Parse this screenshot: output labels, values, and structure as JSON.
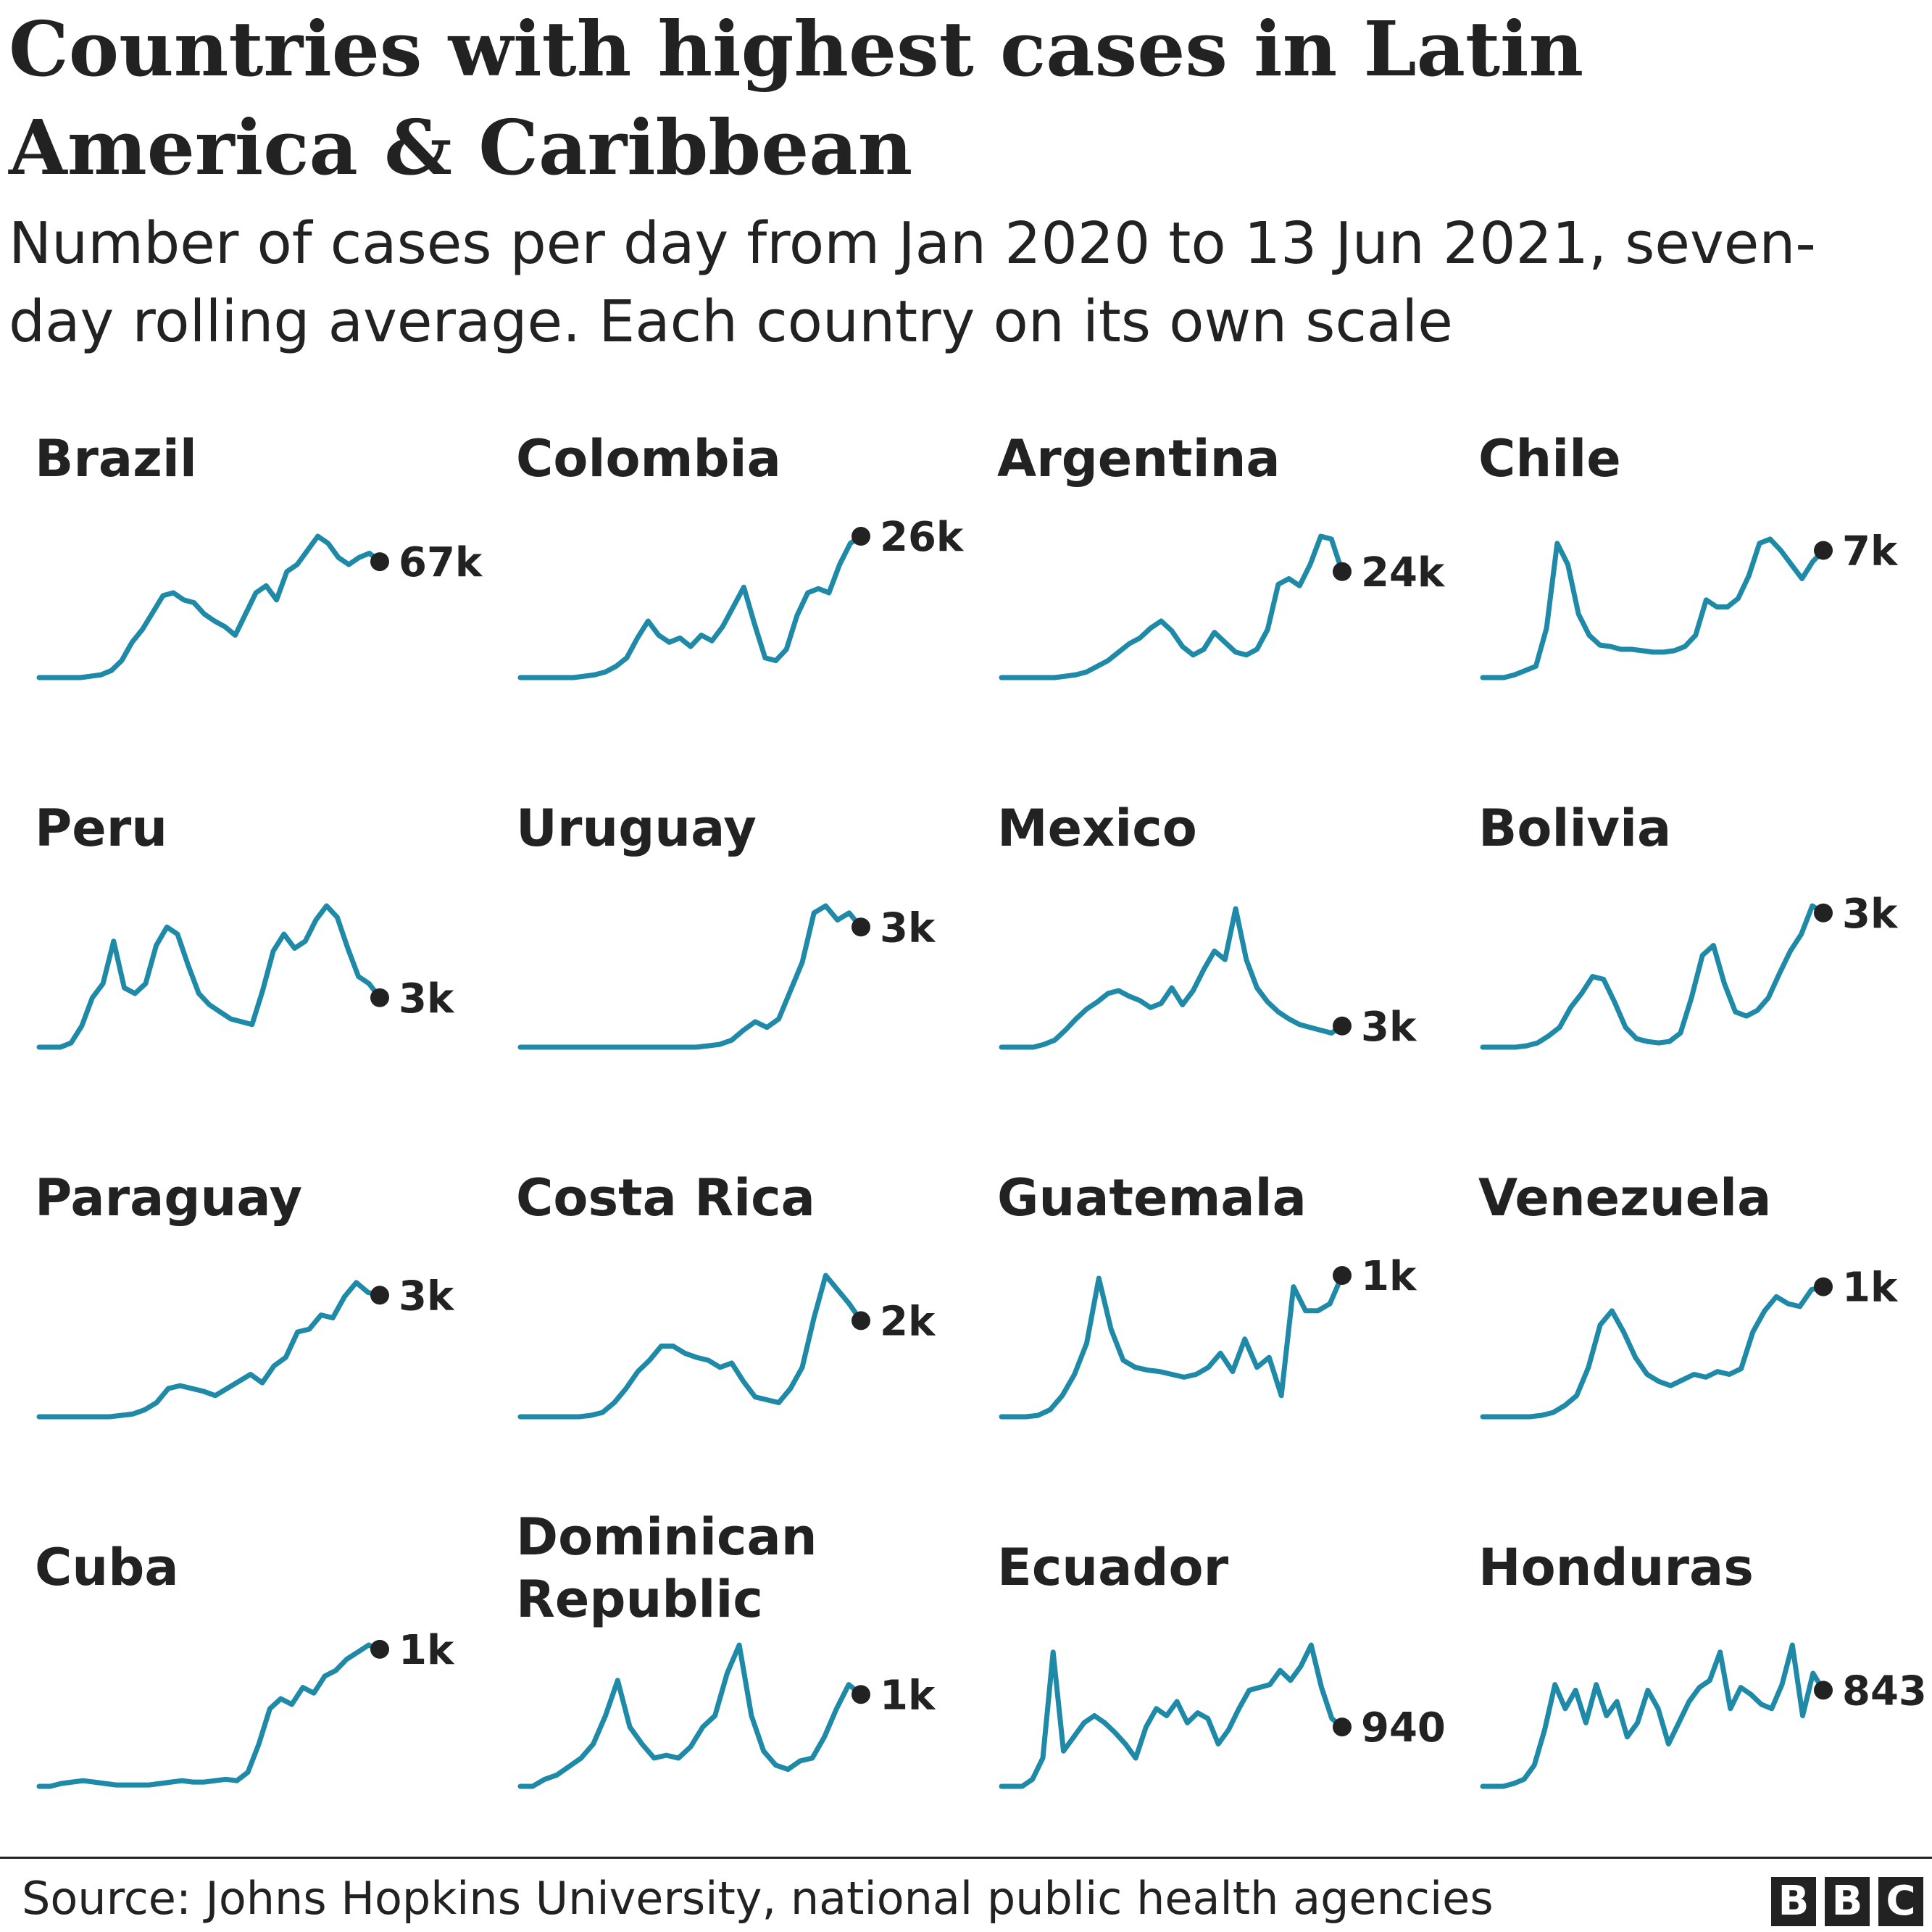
{
  "header": {
    "title": "Countries with highest cases in Latin America & Caribbean",
    "subtitle": "Number of cases per day from Jan 2020 to 13 Jun 2021, seven-day rolling average. Each country on its own scale"
  },
  "footer": {
    "source": "Source: Johns Hopkins University, national public health agencies",
    "logo_letters": [
      "B",
      "B",
      "C"
    ]
  },
  "colors": {
    "line": "#1f8aa8",
    "dot": "#222222",
    "text": "#222222"
  },
  "chart_data": {
    "type": "line",
    "x_start": "Jan 2020",
    "x_end": "13 Jun 2021",
    "panels": [
      {
        "name": "Brazil",
        "end_label": "67k",
        "values": [
          0,
          0,
          0,
          0,
          0,
          0.01,
          0.02,
          0.05,
          0.12,
          0.25,
          0.34,
          0.46,
          0.58,
          0.6,
          0.55,
          0.53,
          0.45,
          0.4,
          0.36,
          0.3,
          0.45,
          0.6,
          0.65,
          0.55,
          0.75,
          0.8,
          0.9,
          1.0,
          0.95,
          0.85,
          0.8,
          0.85,
          0.88,
          0.82
        ]
      },
      {
        "name": "Colombia",
        "end_label": "26k",
        "values": [
          0,
          0,
          0,
          0,
          0,
          0,
          0.01,
          0.02,
          0.04,
          0.08,
          0.14,
          0.28,
          0.4,
          0.3,
          0.25,
          0.28,
          0.22,
          0.3,
          0.26,
          0.36,
          0.5,
          0.64,
          0.38,
          0.14,
          0.12,
          0.2,
          0.44,
          0.6,
          0.63,
          0.6,
          0.8,
          0.95,
          1.0
        ]
      },
      {
        "name": "Argentina",
        "end_label": "24k",
        "values": [
          0,
          0,
          0,
          0,
          0,
          0,
          0.01,
          0.02,
          0.04,
          0.08,
          0.12,
          0.18,
          0.24,
          0.28,
          0.35,
          0.4,
          0.33,
          0.22,
          0.16,
          0.2,
          0.32,
          0.25,
          0.18,
          0.16,
          0.2,
          0.34,
          0.66,
          0.7,
          0.65,
          0.8,
          1.0,
          0.98,
          0.75
        ]
      },
      {
        "name": "Chile",
        "end_label": "7k",
        "values": [
          0,
          0,
          0,
          0.02,
          0.05,
          0.08,
          0.35,
          0.95,
          0.8,
          0.45,
          0.3,
          0.23,
          0.22,
          0.2,
          0.2,
          0.19,
          0.18,
          0.18,
          0.19,
          0.22,
          0.3,
          0.55,
          0.5,
          0.5,
          0.56,
          0.72,
          0.95,
          0.98,
          0.9,
          0.8,
          0.7,
          0.82,
          0.9
        ]
      },
      {
        "name": "Peru",
        "end_label": "3k",
        "values": [
          0,
          0,
          0,
          0.03,
          0.15,
          0.35,
          0.45,
          0.75,
          0.42,
          0.38,
          0.45,
          0.72,
          0.85,
          0.8,
          0.58,
          0.38,
          0.3,
          0.25,
          0.2,
          0.18,
          0.16,
          0.4,
          0.68,
          0.8,
          0.7,
          0.75,
          0.9,
          1.0,
          0.92,
          0.7,
          0.5,
          0.45,
          0.35
        ]
      },
      {
        "name": "Uruguay",
        "end_label": "3k",
        "values": [
          0,
          0,
          0,
          0,
          0,
          0,
          0,
          0,
          0,
          0,
          0,
          0,
          0,
          0,
          0,
          0,
          0.01,
          0.02,
          0.05,
          0.12,
          0.18,
          0.14,
          0.2,
          0.4,
          0.6,
          0.95,
          1.0,
          0.9,
          0.95,
          0.85
        ]
      },
      {
        "name": "Mexico",
        "end_label": "3k",
        "values": [
          0,
          0,
          0,
          0,
          0.02,
          0.05,
          0.12,
          0.2,
          0.27,
          0.32,
          0.38,
          0.4,
          0.36,
          0.33,
          0.28,
          0.31,
          0.42,
          0.3,
          0.4,
          0.55,
          0.68,
          0.62,
          0.98,
          0.62,
          0.42,
          0.32,
          0.25,
          0.2,
          0.16,
          0.14,
          0.12,
          0.1,
          0.15
        ]
      },
      {
        "name": "Bolivia",
        "end_label": "3k",
        "values": [
          0,
          0,
          0,
          0,
          0.01,
          0.03,
          0.08,
          0.14,
          0.28,
          0.38,
          0.5,
          0.48,
          0.32,
          0.14,
          0.06,
          0.04,
          0.03,
          0.04,
          0.1,
          0.35,
          0.65,
          0.72,
          0.45,
          0.25,
          0.22,
          0.26,
          0.35,
          0.52,
          0.68,
          0.8,
          1.0,
          0.95
        ]
      },
      {
        "name": "Paraguay",
        "end_label": "3k",
        "values": [
          0,
          0,
          0,
          0,
          0,
          0,
          0,
          0.01,
          0.02,
          0.05,
          0.1,
          0.2,
          0.22,
          0.2,
          0.18,
          0.15,
          0.2,
          0.25,
          0.3,
          0.24,
          0.36,
          0.42,
          0.6,
          0.62,
          0.72,
          0.7,
          0.85,
          0.95,
          0.88,
          0.86
        ]
      },
      {
        "name": "Costa Rica",
        "end_label": "2k",
        "values": [
          0,
          0,
          0,
          0,
          0,
          0,
          0.01,
          0.03,
          0.1,
          0.2,
          0.32,
          0.4,
          0.5,
          0.5,
          0.45,
          0.42,
          0.4,
          0.35,
          0.38,
          0.25,
          0.14,
          0.12,
          0.1,
          0.2,
          0.35,
          0.7,
          1.0,
          0.9,
          0.8,
          0.68
        ]
      },
      {
        "name": "Guatemala",
        "end_label": "1k",
        "values": [
          0,
          0,
          0,
          0.01,
          0.05,
          0.15,
          0.3,
          0.52,
          0.98,
          0.62,
          0.4,
          0.35,
          0.33,
          0.32,
          0.3,
          0.28,
          0.3,
          0.35,
          0.45,
          0.32,
          0.55,
          0.35,
          0.42,
          0.15,
          0.92,
          0.75,
          0.75,
          0.8,
          1.0
        ]
      },
      {
        "name": "Venezuela",
        "end_label": "1k",
        "values": [
          0,
          0,
          0,
          0,
          0,
          0.01,
          0.03,
          0.08,
          0.15,
          0.35,
          0.65,
          0.75,
          0.6,
          0.42,
          0.3,
          0.25,
          0.22,
          0.26,
          0.3,
          0.28,
          0.32,
          0.3,
          0.34,
          0.6,
          0.75,
          0.85,
          0.8,
          0.78,
          0.9,
          0.92
        ]
      },
      {
        "name": "Cuba",
        "end_label": "1k",
        "values": [
          0,
          0,
          0.02,
          0.03,
          0.04,
          0.03,
          0.02,
          0.01,
          0.01,
          0.01,
          0.01,
          0.02,
          0.03,
          0.04,
          0.03,
          0.03,
          0.04,
          0.05,
          0.04,
          0.1,
          0.3,
          0.55,
          0.62,
          0.58,
          0.7,
          0.66,
          0.78,
          0.82,
          0.9,
          0.95,
          1.0,
          0.97
        ]
      },
      {
        "name": "Dominican Republic",
        "end_label": "1k",
        "values": [
          0,
          0,
          0.05,
          0.08,
          0.14,
          0.2,
          0.3,
          0.5,
          0.75,
          0.42,
          0.3,
          0.2,
          0.22,
          0.2,
          0.28,
          0.42,
          0.5,
          0.8,
          1.0,
          0.5,
          0.25,
          0.15,
          0.12,
          0.18,
          0.2,
          0.35,
          0.55,
          0.72,
          0.65
        ]
      },
      {
        "name": "Ecuador",
        "end_label": "940",
        "values": [
          0,
          0,
          0,
          0.05,
          0.2,
          0.95,
          0.25,
          0.35,
          0.45,
          0.5,
          0.45,
          0.38,
          0.3,
          0.2,
          0.42,
          0.55,
          0.5,
          0.6,
          0.45,
          0.52,
          0.48,
          0.3,
          0.4,
          0.55,
          0.68,
          0.7,
          0.72,
          0.82,
          0.75,
          0.85,
          1.0,
          0.7,
          0.48,
          0.42
        ]
      },
      {
        "name": "Honduras",
        "end_label": "843",
        "values": [
          0,
          0,
          0,
          0.02,
          0.05,
          0.15,
          0.4,
          0.72,
          0.55,
          0.68,
          0.45,
          0.72,
          0.5,
          0.6,
          0.35,
          0.45,
          0.68,
          0.55,
          0.3,
          0.45,
          0.6,
          0.7,
          0.75,
          0.95,
          0.55,
          0.7,
          0.65,
          0.58,
          0.55,
          0.72,
          1.0,
          0.5,
          0.8,
          0.68
        ]
      }
    ]
  }
}
